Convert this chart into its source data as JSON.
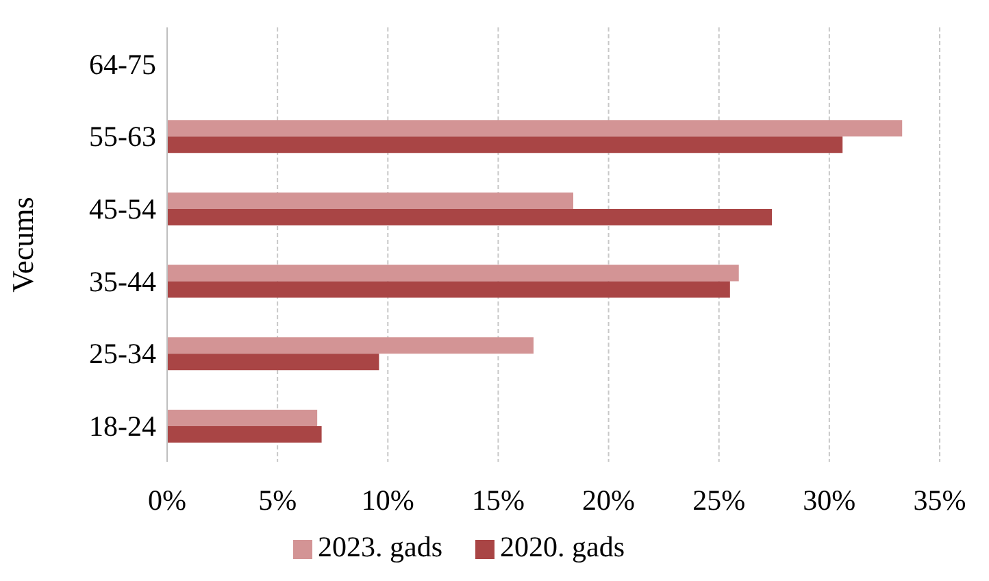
{
  "chart_data": {
    "type": "bar",
    "orientation": "horizontal",
    "ylabel": "Vecums",
    "categories": [
      "64-75",
      "55-63",
      "45-54",
      "35-44",
      "25-34",
      "18-24"
    ],
    "series": [
      {
        "name": "2023. gads",
        "color": "#d39495",
        "values": [
          0,
          33.3,
          18.4,
          25.9,
          16.6,
          6.8
        ]
      },
      {
        "name": "2020. gads",
        "color": "#a94545",
        "values": [
          0,
          30.6,
          27.4,
          25.5,
          9.6,
          7.0
        ]
      }
    ],
    "xlim": [
      0,
      35
    ],
    "xticks": [
      {
        "value": 0,
        "label": "0%"
      },
      {
        "value": 5,
        "label": "5%"
      },
      {
        "value": 10,
        "label": "10%"
      },
      {
        "value": 15,
        "label": "15%"
      },
      {
        "value": 20,
        "label": "20%"
      },
      {
        "value": 25,
        "label": "25%"
      },
      {
        "value": 30,
        "label": "30%"
      },
      {
        "value": 35,
        "label": "35%"
      }
    ],
    "grid": "x",
    "legend": "bottom"
  }
}
